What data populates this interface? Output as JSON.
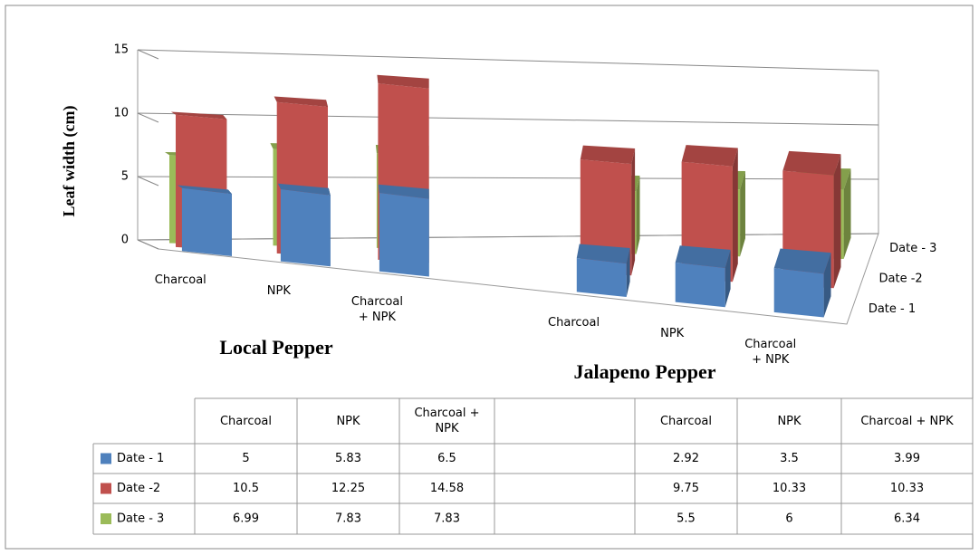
{
  "chart_data": {
    "type": "bar3d",
    "y_label": "Leaf width (cm)",
    "group_labels": [
      "Local Pepper",
      "Jalapeno Pepper"
    ],
    "categories": [
      "Charcoal",
      "NPK",
      "Charcoal + NPK",
      null,
      "Charcoal",
      "NPK",
      "Charcoal + NPK"
    ],
    "series": [
      {
        "name": "Date - 1",
        "color": "#4f81bd",
        "values": [
          5,
          5.83,
          6.5,
          null,
          2.92,
          3.5,
          3.99
        ]
      },
      {
        "name": "Date -2",
        "color": "#c0504d",
        "values": [
          10.5,
          12.25,
          14.58,
          null,
          9.75,
          10.33,
          10.33
        ]
      },
      {
        "name": "Date - 3",
        "color": "#9bbb59",
        "values": [
          6.99,
          7.83,
          7.83,
          null,
          5.5,
          6,
          6.34
        ]
      }
    ],
    "ylim": [
      0,
      15
    ],
    "yticks": [
      0,
      5,
      10,
      15
    ],
    "grid": true
  }
}
